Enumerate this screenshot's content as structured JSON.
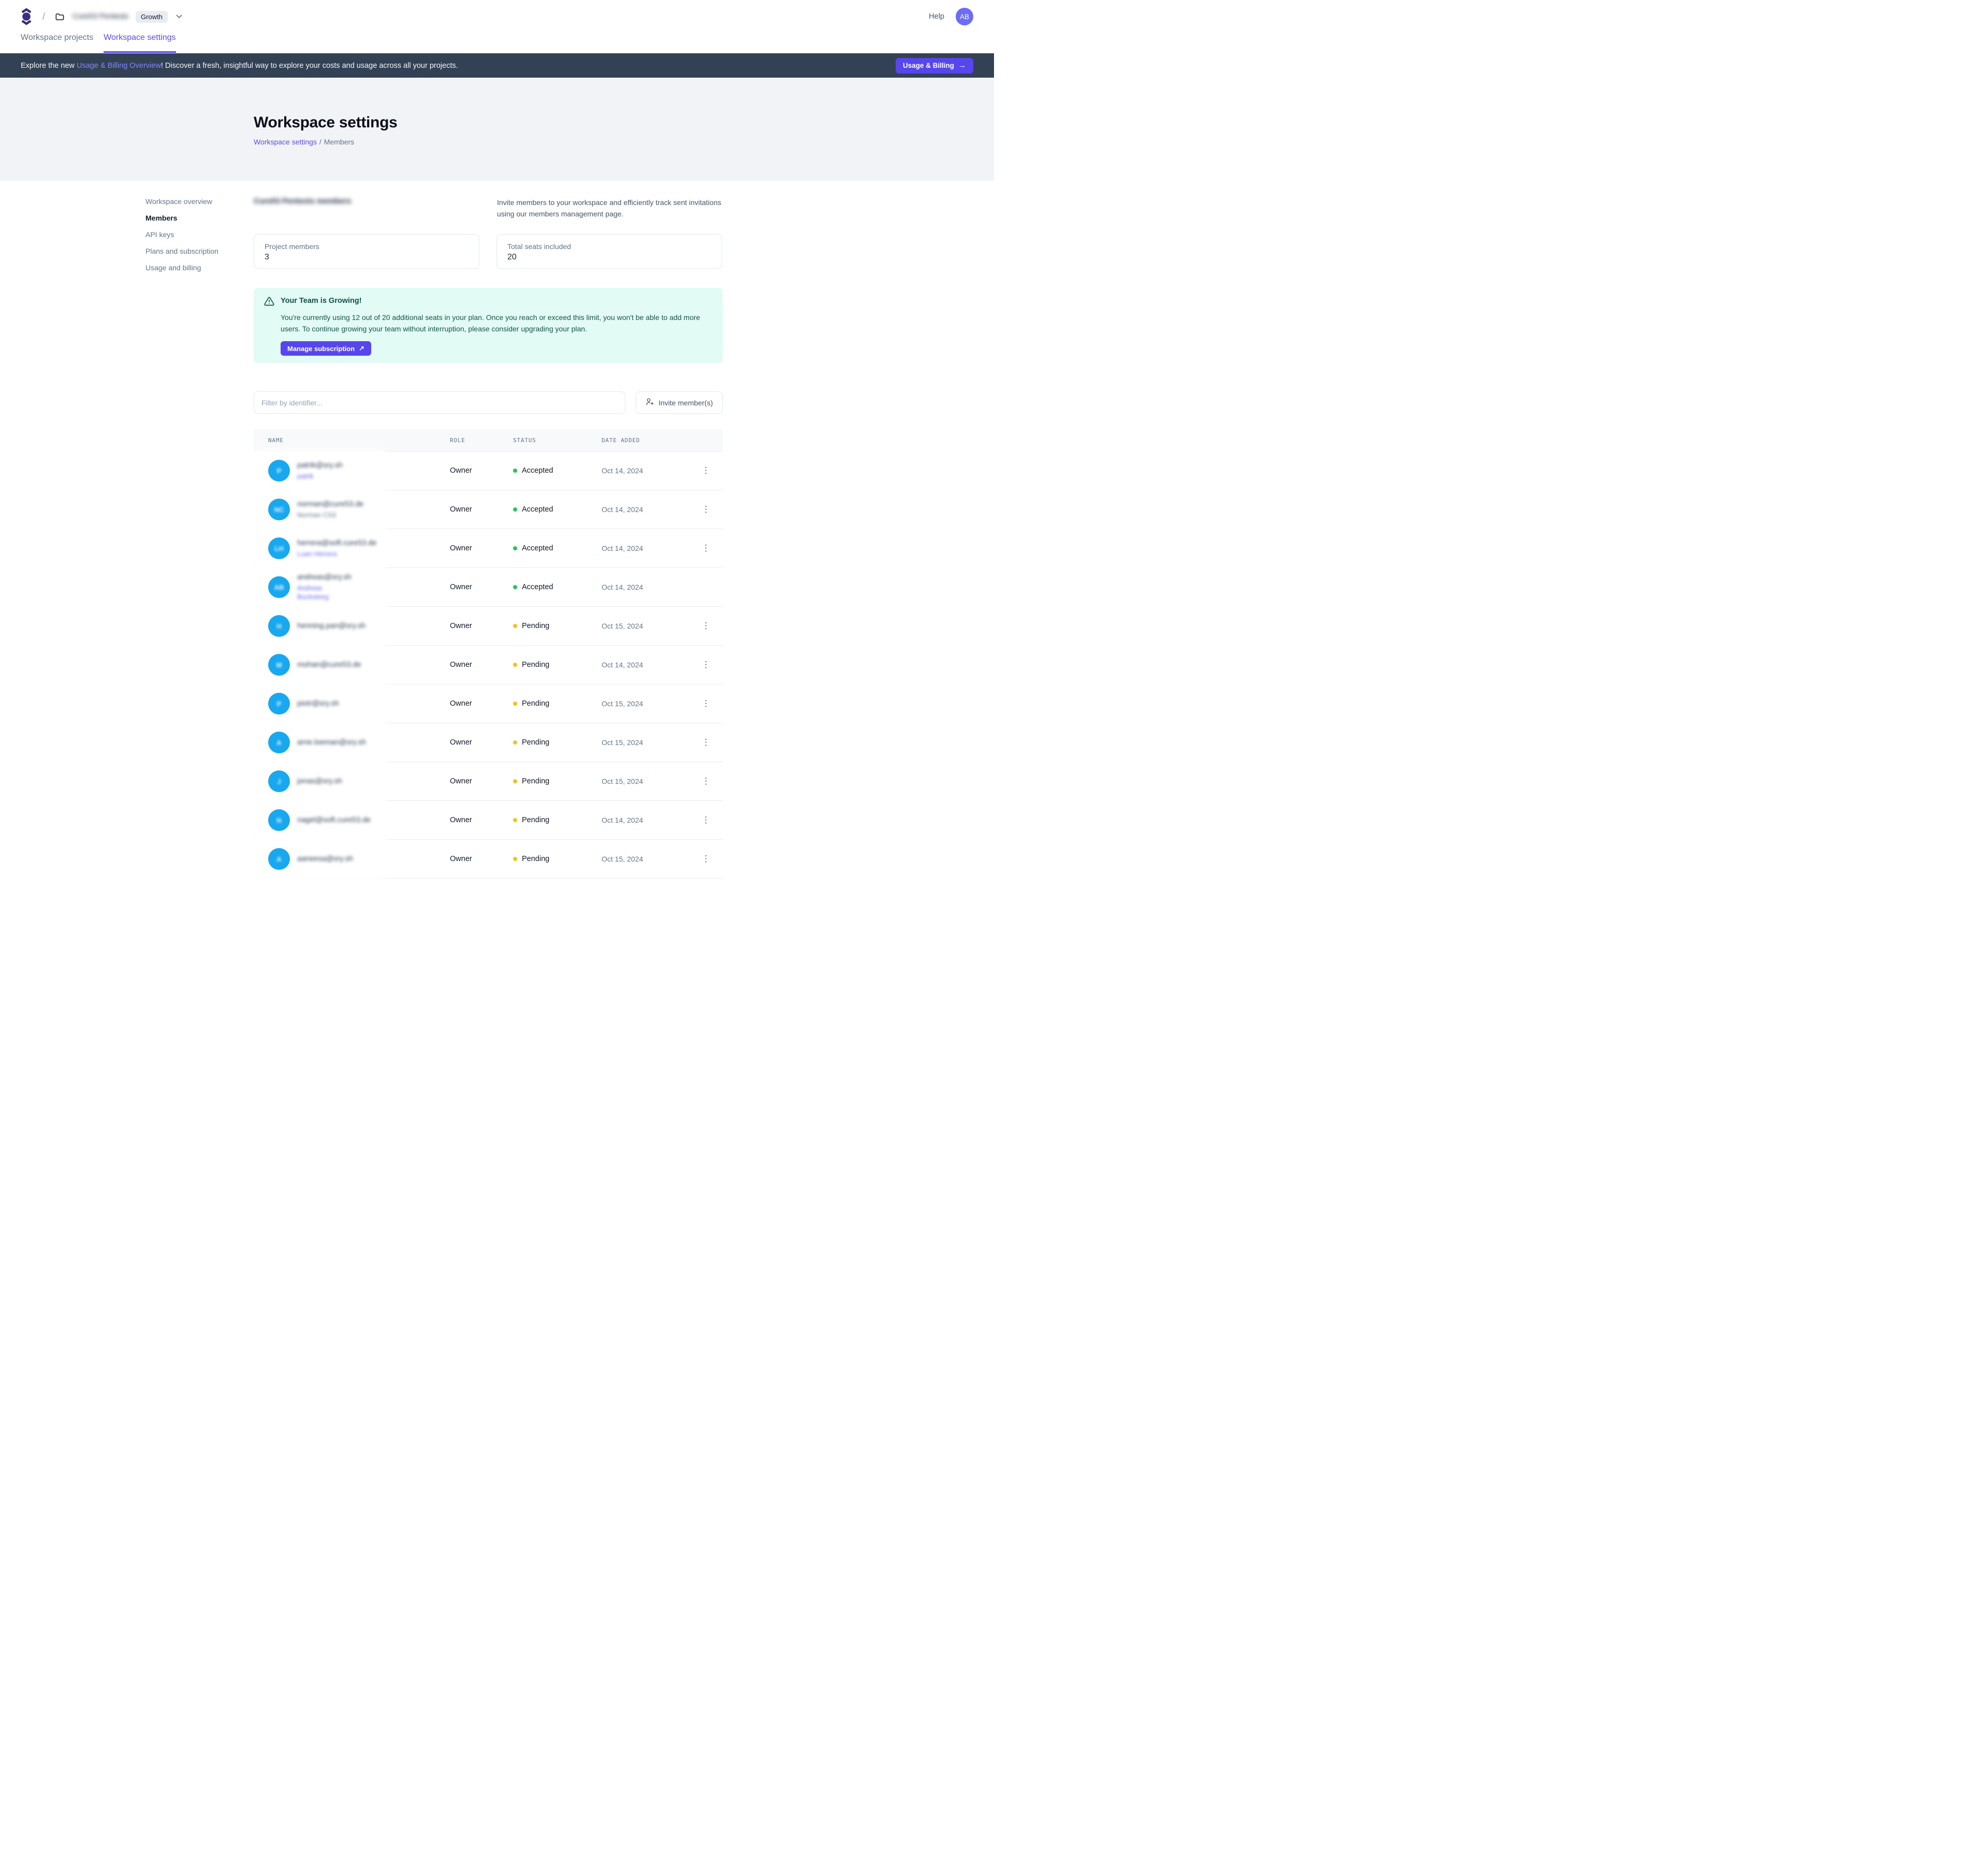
{
  "theme": {
    "accent": "#5646ec",
    "banner_bg": "#334155",
    "hero_bg": "#f1f3f6",
    "alert_bg": "#e2fbf4",
    "alert_text": "#134e4a",
    "avatar_blue": "#18a8ef",
    "avatar_top_bg": "#6c6cf5",
    "status_accepted": "#22c55e",
    "status_pending": "#f0c419"
  },
  "icons": {
    "logo": "brand-mark",
    "folder": "folder-outline",
    "chevron_down": "chevron-down",
    "warning": "warning-triangle",
    "invite": "person-plus",
    "kebab_glyph": "⋮",
    "arrow_right": "→",
    "arrow_up_right": "↗"
  },
  "navbar": {
    "separator": "/",
    "workspace_name": "Cure53 Pentests",
    "workspace_name_redacted": true,
    "plan_badge": "Growth",
    "help": "Help",
    "avatar_initials": "AB"
  },
  "tabs": [
    {
      "label": "Workspace projects",
      "active": false
    },
    {
      "label": "Workspace settings",
      "active": true
    }
  ],
  "banner": {
    "text_pre": "Explore the new ",
    "link": "Usage & Billing Overview",
    "text_post": "! Discover a fresh, insightful way to explore your costs and usage across all your projects.",
    "button": "Usage & Billing"
  },
  "hero": {
    "title": "Workspace settings",
    "breadcrumb": {
      "link": "Workspace settings",
      "separator": "/",
      "current": "Members"
    }
  },
  "sidebar": {
    "items": [
      {
        "label": "Workspace overview",
        "active": false
      },
      {
        "label": "Members",
        "active": true
      },
      {
        "label": "API keys",
        "active": false
      },
      {
        "label": "Plans and subscription",
        "active": false
      },
      {
        "label": "Usage and billing",
        "active": false
      }
    ]
  },
  "members": {
    "title": "Cure53 Pentests members",
    "title_redacted": true,
    "invite_help": "Invite members to your workspace and efficiently track sent invitations using our members management page.",
    "stats": [
      {
        "label": "Project members",
        "value": "3"
      },
      {
        "label": "Total seats included",
        "value": "20"
      }
    ]
  },
  "alert": {
    "title": "Your Team is Growing!",
    "body": "You're currently using 12 out of 20 additional seats in your plan. Once you reach or exceed this limit, you won't be able to add more users. To continue growing your team without interruption, please consider upgrading your plan.",
    "button": "Manage subscription"
  },
  "toolbar": {
    "filter_placeholder": "Filter by identifier...",
    "invite_button": "Invite member(s)"
  },
  "table": {
    "columns": [
      "NAME",
      "ROLE",
      "STATUS",
      "DATE ADDED"
    ],
    "rows": [
      {
        "redacted": true,
        "avatar": "P",
        "email": "patrik@sry.sh",
        "username_lines": [
          "patrik"
        ],
        "username_color": "#6366f1",
        "role": "Owner",
        "status": "Accepted",
        "status_color": "#22c55e",
        "date": "Oct 14, 2024",
        "menu": true
      },
      {
        "redacted": true,
        "avatar": "NC",
        "email": "norman@cure53.de",
        "username_lines": [
          "Norman CS3"
        ],
        "username_color": "#64748b",
        "role": "Owner",
        "status": "Accepted",
        "status_color": "#22c55e",
        "date": "Oct 14, 2024",
        "menu": true
      },
      {
        "redacted": true,
        "avatar": "LH",
        "email": "herrera@soft.cure53.de",
        "username_lines": [
          "Luan Herrera"
        ],
        "username_color": "#6366f1",
        "role": "Owner",
        "status": "Accepted",
        "status_color": "#22c55e",
        "date": "Oct 14, 2024",
        "menu": true
      },
      {
        "redacted": true,
        "avatar": "AB",
        "email": "andreas@sry.sh",
        "username_lines": [
          "Andreas",
          "Bucksteeg"
        ],
        "username_color": "#6366f1",
        "role": "Owner",
        "status": "Accepted",
        "status_color": "#22c55e",
        "date": "Oct 14, 2024",
        "menu": false
      },
      {
        "redacted": true,
        "avatar": "H",
        "email": "henning.pan@sry.sh",
        "username_lines": [],
        "username_color": "#6366f1",
        "role": "Owner",
        "status": "Pending",
        "status_color": "#f0c419",
        "date": "Oct 15, 2024",
        "menu": true
      },
      {
        "redacted": true,
        "avatar": "M",
        "email": "mohan@cure53.de",
        "username_lines": [],
        "username_color": "#6366f1",
        "role": "Owner",
        "status": "Pending",
        "status_color": "#f0c419",
        "date": "Oct 14, 2024",
        "menu": true
      },
      {
        "redacted": true,
        "avatar": "P",
        "email": "piotr@sry.sh",
        "username_lines": [],
        "username_color": "#6366f1",
        "role": "Owner",
        "status": "Pending",
        "status_color": "#f0c419",
        "date": "Oct 15, 2024",
        "menu": true
      },
      {
        "redacted": true,
        "avatar": "A",
        "email": "arne.loeman@sry.sh",
        "username_lines": [],
        "username_color": "#6366f1",
        "role": "Owner",
        "status": "Pending",
        "status_color": "#f0c419",
        "date": "Oct 15, 2024",
        "menu": true
      },
      {
        "redacted": true,
        "avatar": "J",
        "email": "jonas@sry.sh",
        "username_lines": [],
        "username_color": "#6366f1",
        "role": "Owner",
        "status": "Pending",
        "status_color": "#f0c419",
        "date": "Oct 15, 2024",
        "menu": true
      },
      {
        "redacted": true,
        "avatar": "N",
        "email": "nagel@soft.cure53.de",
        "username_lines": [],
        "username_color": "#6366f1",
        "role": "Owner",
        "status": "Pending",
        "status_color": "#f0c419",
        "date": "Oct 14, 2024",
        "menu": true
      },
      {
        "redacted": true,
        "avatar": "A",
        "email": "aaneesa@sry.sh",
        "username_lines": [],
        "username_color": "#6366f1",
        "role": "Owner",
        "status": "Pending",
        "status_color": "#f0c419",
        "date": "Oct 15, 2024",
        "menu": true
      }
    ]
  }
}
